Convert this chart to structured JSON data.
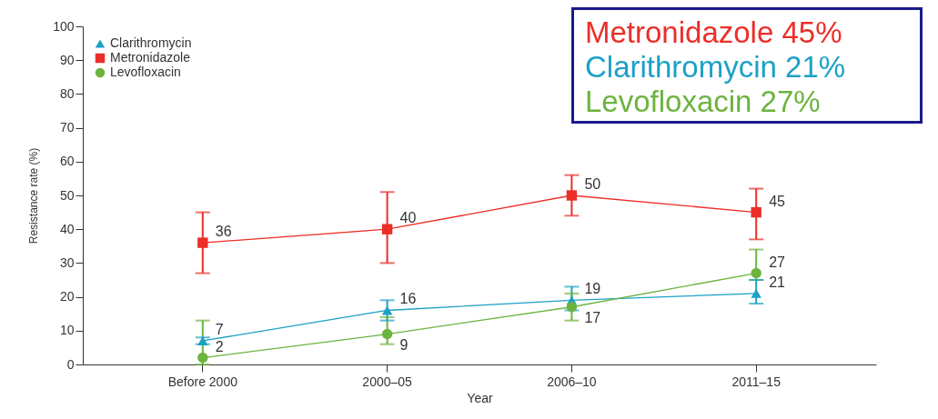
{
  "chart_data": {
    "type": "line",
    "xlabel": "Year",
    "ylabel": "Resistance rate (%)",
    "categories": [
      "Before 2000",
      "2000–05",
      "2006–10",
      "2011–15"
    ],
    "ylim": [
      0,
      100
    ],
    "yticks": [
      0,
      10,
      20,
      30,
      40,
      50,
      60,
      70,
      80,
      90,
      100
    ],
    "series": [
      {
        "name": "Clarithromycin",
        "color": "#1ba1c6",
        "marker": "triangle",
        "values": [
          7,
          16,
          19,
          21
        ],
        "errors": [
          [
            6,
            8
          ],
          [
            13,
            19
          ],
          [
            16,
            23
          ],
          [
            18,
            25
          ]
        ]
      },
      {
        "name": "Metronidazole",
        "color": "#ec2e28",
        "marker": "square",
        "values": [
          36,
          40,
          50,
          45
        ],
        "errors": [
          [
            27,
            45
          ],
          [
            30,
            51
          ],
          [
            44,
            56
          ],
          [
            37,
            52
          ]
        ]
      },
      {
        "name": "Levofloxacin",
        "color": "#6cb33f",
        "marker": "circle",
        "values": [
          2,
          9,
          17,
          27
        ],
        "errors": [
          [
            0,
            13
          ],
          [
            6,
            14
          ],
          [
            13,
            21
          ],
          [
            25,
            34
          ]
        ]
      }
    ],
    "data_labels": true,
    "legend": "top left",
    "grid": false,
    "annotations": [
      "Metronidazole 45%",
      "Clarithromycin 21%",
      "Levofloxacin 27%"
    ]
  }
}
